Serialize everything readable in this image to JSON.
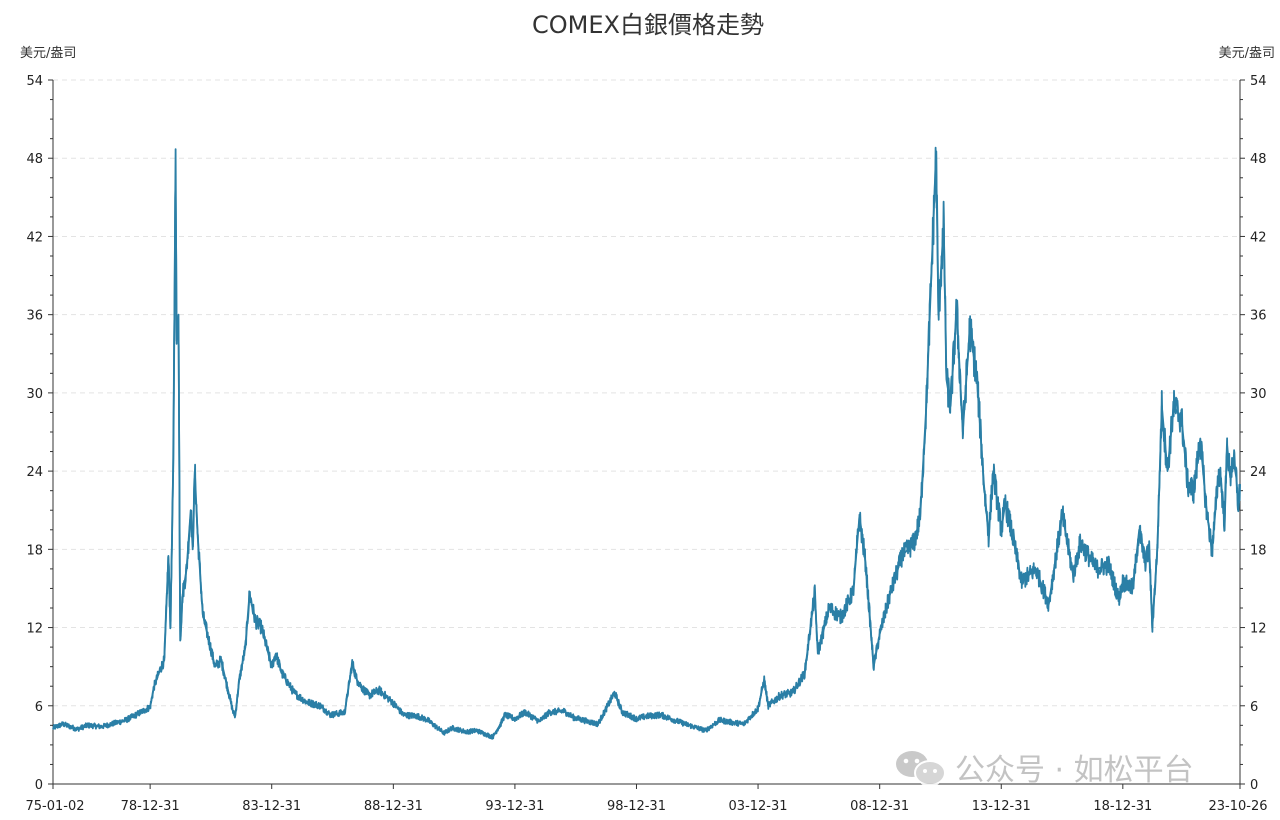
{
  "chart_data": {
    "type": "line",
    "title": "COMEX白銀價格走勢",
    "y_unit_left": "美元/盎司",
    "y_unit_right": "美元/盎司",
    "ylim": [
      0,
      54
    ],
    "y_ticks": [
      0,
      6,
      12,
      18,
      24,
      30,
      36,
      42,
      48,
      54
    ],
    "x_range": [
      "1975-01-02",
      "2023-10-26"
    ],
    "x_tick_labels": [
      "75-01-02",
      "78-12-31",
      "83-12-31",
      "88-12-31",
      "93-12-31",
      "98-12-31",
      "03-12-31",
      "08-12-31",
      "13-12-31",
      "18-12-31",
      "23-10-26"
    ],
    "x_tick_dates": [
      "1975-01-02",
      "1978-12-31",
      "1983-12-31",
      "1988-12-31",
      "1993-12-31",
      "1998-12-31",
      "2003-12-31",
      "2008-12-31",
      "2013-12-31",
      "2018-12-31",
      "2023-10-26"
    ],
    "grid": "horizontal dashed",
    "series": [
      {
        "color": "#2b7fa6",
        "points": [
          [
            "1975-01-02",
            4.3
          ],
          [
            "1975-06-01",
            4.6
          ],
          [
            "1976-01-01",
            4.2
          ],
          [
            "1976-06-01",
            4.5
          ],
          [
            "1977-01-01",
            4.4
          ],
          [
            "1977-06-01",
            4.6
          ],
          [
            "1978-01-01",
            4.9
          ],
          [
            "1978-06-01",
            5.3
          ],
          [
            "1978-12-31",
            5.9
          ],
          [
            "1979-03-01",
            7.5
          ],
          [
            "1979-06-01",
            8.8
          ],
          [
            "1979-08-01",
            9.5
          ],
          [
            "1979-10-01",
            17.5
          ],
          [
            "1979-11-01",
            12.0
          ],
          [
            "1979-12-15",
            25.0
          ],
          [
            "1980-01-18",
            48.7
          ],
          [
            "1980-02-01",
            34.0
          ],
          [
            "1980-03-01",
            36.0
          ],
          [
            "1980-03-27",
            11.0
          ],
          [
            "1980-05-01",
            14.5
          ],
          [
            "1980-07-01",
            16.5
          ],
          [
            "1980-09-01",
            21.0
          ],
          [
            "1980-10-01",
            18.0
          ],
          [
            "1980-11-01",
            24.0
          ],
          [
            "1980-12-15",
            19.0
          ],
          [
            "1981-03-01",
            13.0
          ],
          [
            "1981-06-01",
            11.0
          ],
          [
            "1981-09-01",
            9.0
          ],
          [
            "1981-12-01",
            9.5
          ],
          [
            "1982-03-01",
            7.5
          ],
          [
            "1982-06-01",
            5.5
          ],
          [
            "1982-07-01",
            5.2
          ],
          [
            "1982-09-01",
            8.0
          ],
          [
            "1982-12-01",
            10.5
          ],
          [
            "1983-02-01",
            14.6
          ],
          [
            "1983-05-01",
            12.5
          ],
          [
            "1983-08-01",
            12.0
          ],
          [
            "1983-12-31",
            9.0
          ],
          [
            "1984-03-01",
            10.0
          ],
          [
            "1984-06-01",
            8.5
          ],
          [
            "1984-12-01",
            7.0
          ],
          [
            "1985-06-01",
            6.3
          ],
          [
            "1986-01-01",
            6.0
          ],
          [
            "1986-06-01",
            5.3
          ],
          [
            "1987-01-01",
            5.5
          ],
          [
            "1987-04-24",
            9.3
          ],
          [
            "1987-07-01",
            8.0
          ],
          [
            "1987-10-01",
            7.3
          ],
          [
            "1988-01-01",
            6.8
          ],
          [
            "1988-06-01",
            7.2
          ],
          [
            "1988-12-31",
            6.2
          ],
          [
            "1989-06-01",
            5.3
          ],
          [
            "1990-01-01",
            5.2
          ],
          [
            "1990-06-01",
            4.9
          ],
          [
            "1991-02-01",
            3.9
          ],
          [
            "1991-06-01",
            4.3
          ],
          [
            "1992-01-01",
            4.0
          ],
          [
            "1992-06-01",
            4.1
          ],
          [
            "1993-02-01",
            3.6
          ],
          [
            "1993-06-01",
            4.6
          ],
          [
            "1993-08-01",
            5.3
          ],
          [
            "1993-12-31",
            5.0
          ],
          [
            "1994-06-01",
            5.5
          ],
          [
            "1995-01-01",
            4.8
          ],
          [
            "1995-06-01",
            5.5
          ],
          [
            "1996-01-01",
            5.6
          ],
          [
            "1996-06-01",
            5.1
          ],
          [
            "1997-01-01",
            4.8
          ],
          [
            "1997-06-01",
            4.6
          ],
          [
            "1998-02-05",
            7.0
          ],
          [
            "1998-06-01",
            5.5
          ],
          [
            "1998-12-31",
            5.0
          ],
          [
            "1999-06-01",
            5.2
          ],
          [
            "2000-01-01",
            5.3
          ],
          [
            "2000-06-01",
            5.0
          ],
          [
            "2001-01-01",
            4.6
          ],
          [
            "2001-11-01",
            4.1
          ],
          [
            "2002-06-01",
            4.9
          ],
          [
            "2003-01-01",
            4.7
          ],
          [
            "2003-06-01",
            4.6
          ],
          [
            "2003-12-31",
            5.8
          ],
          [
            "2004-04-01",
            8.0
          ],
          [
            "2004-06-01",
            6.0
          ],
          [
            "2004-12-01",
            6.8
          ],
          [
            "2005-06-01",
            7.0
          ],
          [
            "2005-12-01",
            8.5
          ],
          [
            "2006-05-01",
            14.7
          ],
          [
            "2006-06-15",
            10.0
          ],
          [
            "2006-12-01",
            13.5
          ],
          [
            "2007-06-01",
            12.8
          ],
          [
            "2007-12-01",
            14.8
          ],
          [
            "2008-03-01",
            20.5
          ],
          [
            "2008-06-01",
            17.0
          ],
          [
            "2008-10-01",
            9.0
          ],
          [
            "2008-12-31",
            11.5
          ],
          [
            "2009-06-01",
            14.5
          ],
          [
            "2009-12-01",
            17.5
          ],
          [
            "2010-06-01",
            18.5
          ],
          [
            "2010-09-01",
            20.5
          ],
          [
            "2010-12-01",
            29.0
          ],
          [
            "2011-04-28",
            48.5
          ],
          [
            "2011-06-01",
            36.0
          ],
          [
            "2011-08-20",
            43.0
          ],
          [
            "2011-09-30",
            31.0
          ],
          [
            "2011-12-01",
            29.0
          ],
          [
            "2012-03-01",
            36.5
          ],
          [
            "2012-06-01",
            27.0
          ],
          [
            "2012-09-15",
            35.0
          ],
          [
            "2013-01-01",
            31.0
          ],
          [
            "2013-04-15",
            23.0
          ],
          [
            "2013-06-25",
            19.0
          ],
          [
            "2013-09-01",
            24.0
          ],
          [
            "2013-12-31",
            19.5
          ],
          [
            "2014-03-01",
            21.5
          ],
          [
            "2014-06-01",
            19.5
          ],
          [
            "2014-11-01",
            15.5
          ],
          [
            "2015-06-01",
            16.5
          ],
          [
            "2015-12-15",
            13.8
          ],
          [
            "2016-07-05",
            20.7
          ],
          [
            "2016-12-15",
            16.0
          ],
          [
            "2017-04-01",
            18.5
          ],
          [
            "2017-12-01",
            16.5
          ],
          [
            "2018-06-01",
            16.8
          ],
          [
            "2018-11-01",
            14.2
          ],
          [
            "2018-12-31",
            15.5
          ],
          [
            "2019-06-01",
            15.0
          ],
          [
            "2019-09-03",
            19.5
          ],
          [
            "2019-12-01",
            17.0
          ],
          [
            "2020-02-01",
            18.0
          ],
          [
            "2020-03-18",
            12.0
          ],
          [
            "2020-06-01",
            18.0
          ],
          [
            "2020-08-07",
            29.0
          ],
          [
            "2020-11-01",
            24.0
          ],
          [
            "2021-02-01",
            29.0
          ],
          [
            "2021-06-01",
            28.0
          ],
          [
            "2021-09-01",
            23.0
          ],
          [
            "2021-12-01",
            22.5
          ],
          [
            "2022-03-08",
            26.5
          ],
          [
            "2022-06-01",
            21.5
          ],
          [
            "2022-09-01",
            17.8
          ],
          [
            "2022-12-01",
            23.5
          ],
          [
            "2023-01-01",
            24.0
          ],
          [
            "2023-03-08",
            20.0
          ],
          [
            "2023-04-15",
            26.0
          ],
          [
            "2023-06-01",
            23.5
          ],
          [
            "2023-07-15",
            25.0
          ],
          [
            "2023-09-01",
            23.5
          ],
          [
            "2023-10-03",
            21.0
          ],
          [
            "2023-10-26",
            23.0
          ]
        ]
      }
    ]
  },
  "watermark": {
    "text": "公众号 · 如松平台",
    "icon": "wechat-icon"
  }
}
